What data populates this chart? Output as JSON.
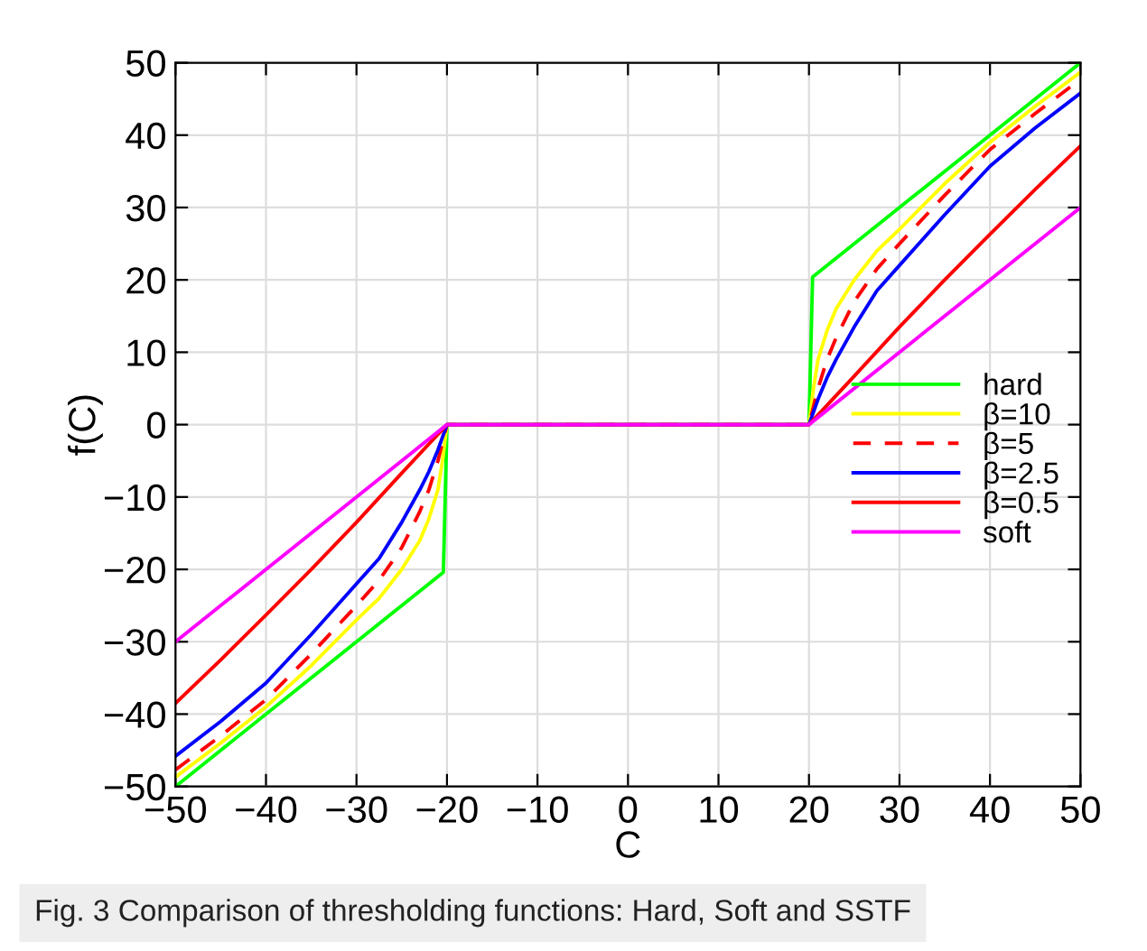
{
  "chart_data": {
    "type": "line",
    "xlabel": "C",
    "ylabel": "f(C)",
    "annotations": [
      "Fig. 3 Comparison of thresholding functions: Hard, Soft and SSTF"
    ],
    "xlim": [
      -50,
      50
    ],
    "ylim": [
      -50,
      50
    ],
    "xticks": [
      -50,
      -40,
      -30,
      -20,
      -10,
      0,
      10,
      20,
      30,
      40,
      50
    ],
    "yticks": [
      -50,
      -40,
      -30,
      -20,
      -10,
      0,
      10,
      20,
      30,
      40,
      50
    ],
    "grid": true,
    "legend": "right",
    "marker": "none",
    "series": [
      {
        "name": "hard",
        "color": "#00ff00",
        "x": [
          -50,
          -20.4,
          -20,
          20,
          20.4,
          50
        ],
        "values": [
          -50,
          -20.4,
          0,
          0,
          20.4,
          50
        ]
      },
      {
        "name": "β=10",
        "color": "#ffff00",
        "x": [
          -50,
          -45,
          -40,
          -35,
          -30,
          -27.5,
          -25,
          -23,
          -22,
          -21,
          -20.5,
          -20,
          20,
          20.5,
          21,
          22,
          23,
          25,
          27.5,
          30,
          35,
          40,
          45,
          50
        ],
        "values": [
          -48.7,
          -44,
          -39,
          -33.3,
          -27,
          -24,
          -20,
          -16,
          -13,
          -9,
          -5,
          0,
          0,
          5,
          9,
          13,
          16,
          20,
          24,
          27,
          33.3,
          39,
          44,
          48.7
        ]
      },
      {
        "name": "β=5",
        "color": "#ff0000",
        "line_style": "dashed",
        "x": [
          -50,
          -45,
          -40,
          -35,
          -30,
          -27.5,
          -25,
          -23,
          -22,
          -21,
          -20,
          20,
          21,
          22,
          23,
          25,
          27.5,
          30,
          35,
          40,
          45,
          50
        ],
        "values": [
          -47.7,
          -43,
          -38,
          -31.7,
          -25,
          -21.5,
          -17,
          -12,
          -9,
          -5,
          0,
          0,
          5,
          9,
          12,
          17,
          21.5,
          25,
          31.7,
          38,
          43,
          47.7
        ]
      },
      {
        "name": "β=2.5",
        "color": "#0000ff",
        "x": [
          -50,
          -45,
          -40,
          -35,
          -30,
          -27.5,
          -25,
          -23,
          -22,
          -21,
          -20,
          20,
          21,
          22,
          23,
          25,
          27.5,
          30,
          35,
          40,
          45,
          50
        ],
        "values": [
          -45.8,
          -41,
          -35.7,
          -29,
          -22,
          -18.5,
          -13.5,
          -9,
          -6.5,
          -3.5,
          0,
          0,
          3.5,
          6.5,
          9,
          13.5,
          18.5,
          22,
          29,
          35.7,
          41,
          45.8
        ]
      },
      {
        "name": "β=0.5",
        "color": "#ff0000",
        "x": [
          -50,
          -45,
          -40,
          -35,
          -30,
          -25,
          -20,
          20,
          25,
          30,
          35,
          40,
          45,
          50
        ],
        "values": [
          -38.5,
          -32.5,
          -26.3,
          -20,
          -13.5,
          -6.7,
          0,
          0,
          6.7,
          13.5,
          20,
          26.3,
          32.5,
          38.5
        ]
      },
      {
        "name": "soft",
        "color": "#ff00ff",
        "x": [
          -50,
          -20,
          20,
          50
        ],
        "values": [
          -30,
          0,
          0,
          30
        ]
      }
    ]
  }
}
